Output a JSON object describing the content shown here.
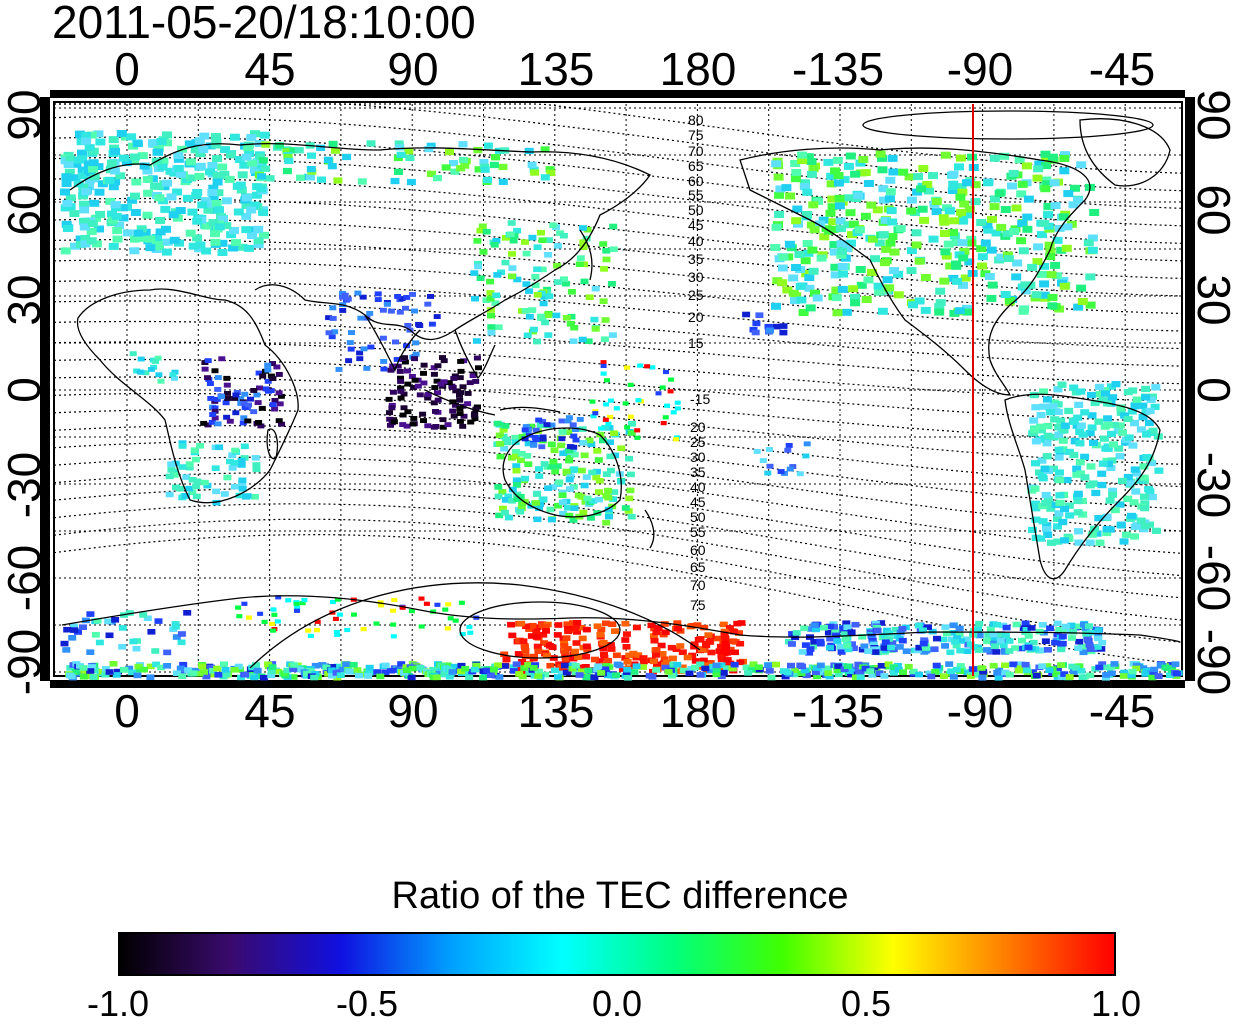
{
  "timestamp": "2011-05-20/18:10:00",
  "top_lon_labels": [
    "0",
    "45",
    "90",
    "135",
    "180",
    "-135",
    "-90",
    "-45"
  ],
  "bottom_lon_labels": [
    "0",
    "45",
    "90",
    "135",
    "180",
    "-135",
    "-90",
    "-45"
  ],
  "left_lat_labels": [
    "90",
    "60",
    "30",
    "0",
    "-30",
    "-60",
    "-90"
  ],
  "right_lat_labels": [
    "90",
    "60",
    "30",
    "0",
    "-30",
    "-60",
    "-90"
  ],
  "contour_labels_north": [
    "80",
    "75",
    "70",
    "65",
    "60",
    "55",
    "50",
    "45",
    "40",
    "35",
    "30",
    "25",
    "20",
    "15"
  ],
  "contour_labels_south": [
    "-15",
    "20",
    "25",
    "30",
    "35",
    "40",
    "45",
    "50",
    "55",
    "60",
    "65",
    "70",
    "75"
  ],
  "colorbar": {
    "title": "Ratio of the TEC difference",
    "labels": [
      "-1.0",
      "-0.5",
      "0.0",
      "0.5",
      "1.0"
    ],
    "min": -1.0,
    "max": 1.0,
    "colors": [
      "#000000",
      "#3a0a6e",
      "#1010e0",
      "#00a0ff",
      "#00ffff",
      "#00ff80",
      "#40ff00",
      "#ffff00",
      "#ff8000",
      "#ff0000"
    ]
  },
  "map": {
    "lon_range": [
      -22,
      337
    ],
    "lat_range": [
      -92,
      92
    ],
    "marker_longitude": -90,
    "marker_color": "#e00000",
    "background": "#ffffff"
  }
}
